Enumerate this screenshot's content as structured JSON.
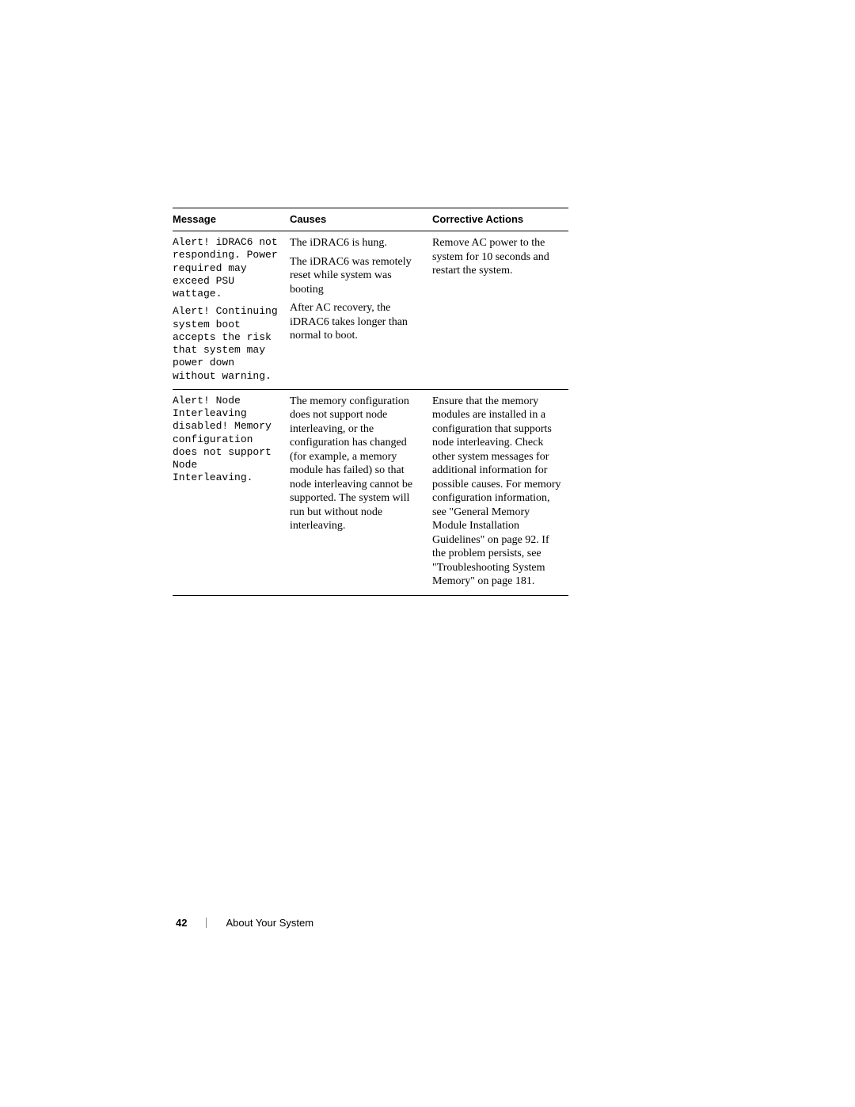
{
  "table": {
    "headers": {
      "message": "Message",
      "causes": "Causes",
      "actions": "Corrective Actions"
    },
    "rows": [
      {
        "message_parts": [
          "Alert! iDRAC6 not responding. Power required may exceed PSU wattage.",
          "Alert! Continuing system boot accepts the risk that system may power down without warning."
        ],
        "causes_parts": [
          "The iDRAC6 is hung.",
          "The iDRAC6 was remotely reset while system was booting",
          "After AC recovery, the iDRAC6 takes longer than normal to boot."
        ],
        "actions": "Remove AC power to the system for 10 seconds and restart the system."
      },
      {
        "message_parts": [
          "Alert! Node Interleaving disabled! Memory configuration does not support Node Interleaving."
        ],
        "causes_parts": [
          "The memory configuration does not support node interleaving, or the configuration has changed (for example, a memory module has failed) so that node interleaving cannot be supported.  The system will run but without node interleaving."
        ],
        "actions": "Ensure that the memory modules are installed in a configuration that supports node interleaving. Check other system messages for additional information for possible causes. For memory configuration information, see \"General Memory Module Installation Guidelines\" on page 92. If the problem persists, see \"Troubleshooting System Memory\" on page 181."
      }
    ]
  },
  "footer": {
    "page_number": "42",
    "section": "About Your System"
  }
}
